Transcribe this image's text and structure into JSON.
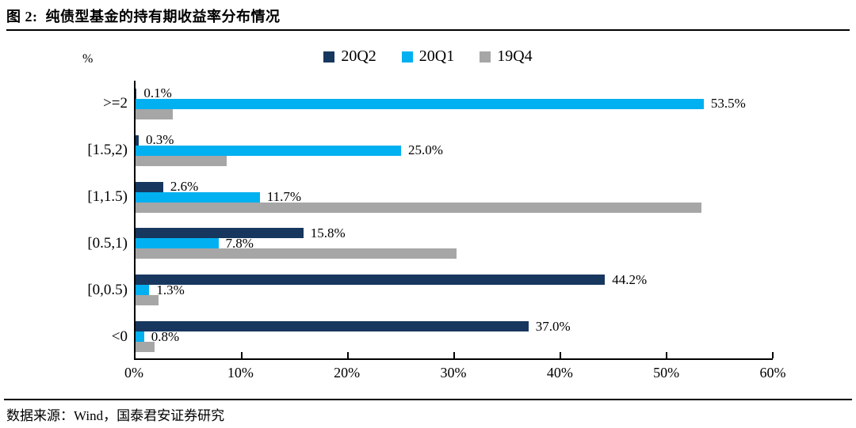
{
  "figure": {
    "title": "图 2:  纯债型基金的持有期收益率分布情况",
    "source": "数据来源：Wind，国泰君安证券研究"
  },
  "colors": {
    "series_20Q2": "#17375E",
    "series_20Q1": "#00B0F0",
    "series_19Q4": "#A6A6A6",
    "axis": "#000000"
  },
  "chart_data": {
    "type": "bar",
    "orientation": "horizontal",
    "title": "纯债型基金的持有期收益率分布情况",
    "unit_label": "%",
    "categories": [
      ">=2",
      "[1.5,2)",
      "[1,1.5)",
      "[0.5,1)",
      "[0,0.5)",
      "<0"
    ],
    "series": [
      {
        "name": "20Q2",
        "color": "#17375E",
        "values": [
          0.1,
          0.3,
          2.6,
          15.8,
          44.2,
          37.0
        ],
        "labels": [
          "0.1%",
          "0.3%",
          "2.6%",
          "15.8%",
          "44.2%",
          "37.0%"
        ]
      },
      {
        "name": "20Q1",
        "color": "#00B0F0",
        "values": [
          53.5,
          25.0,
          11.7,
          7.8,
          1.3,
          0.8
        ],
        "labels": [
          "53.5%",
          "25.0%",
          "11.7%",
          "7.8%",
          "1.3%",
          "0.8%"
        ]
      },
      {
        "name": "19Q4",
        "color": "#A6A6A6",
        "values": [
          3.5,
          8.6,
          53.3,
          30.2,
          2.2,
          1.8
        ],
        "labels": [
          "",
          "",
          "",
          "",
          "",
          ""
        ]
      }
    ],
    "x_ticks": [
      "0%",
      "10%",
      "20%",
      "30%",
      "40%",
      "50%",
      "60%"
    ],
    "xlim": [
      0,
      60
    ],
    "legend_position": "top",
    "legend_entries": [
      "20Q2",
      "20Q1",
      "19Q4"
    ],
    "grid": false
  }
}
